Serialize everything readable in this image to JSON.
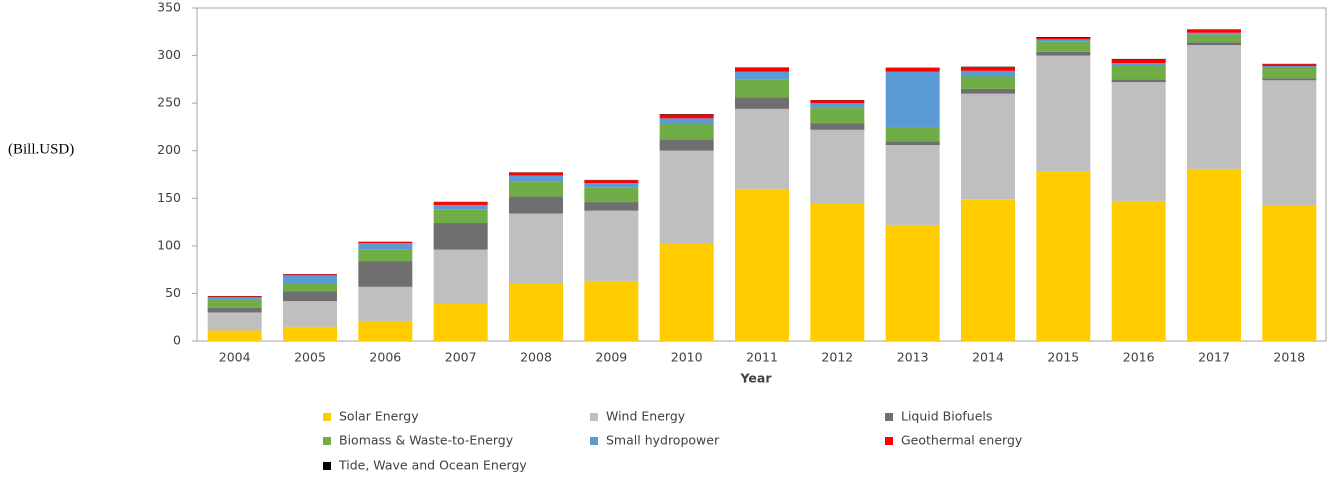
{
  "chart_data": {
    "type": "stacked_bar",
    "y_label": "(Bill.USD)",
    "x_label": "Year",
    "categories": [
      "2004",
      "2005",
      "2006",
      "2007",
      "2008",
      "2009",
      "2010",
      "2011",
      "2012",
      "2013",
      "2014",
      "2015",
      "2016",
      "2017",
      "2018"
    ],
    "ylim": [
      0,
      350
    ],
    "yticks": [
      0,
      50,
      100,
      150,
      200,
      250,
      300,
      350
    ],
    "grid": false,
    "series": [
      {
        "name": "Solar Energy",
        "color": "#ffcc00",
        "values": [
          11,
          15,
          21,
          39,
          60,
          63,
          102,
          160,
          144,
          122,
          149,
          178,
          147,
          181,
          142
        ]
      },
      {
        "name": "Wind Energy",
        "color": "#bfbfbf",
        "values": [
          19,
          27,
          36,
          57,
          74,
          74,
          98,
          84,
          78,
          84,
          111,
          122,
          125,
          130,
          132
        ]
      },
      {
        "name": "Liquid Biofuels",
        "color": "#6f6f6f",
        "values": [
          5,
          10,
          27,
          28,
          18,
          9,
          12,
          12,
          7,
          4,
          5,
          4,
          3,
          3,
          2
        ]
      },
      {
        "name": "Biomass & Waste-to-Energy",
        "color": "#70ad47",
        "values": [
          9,
          9,
          12,
          14,
          16,
          15,
          16,
          19,
          16,
          15,
          13,
          11,
          14,
          8,
          12
        ]
      },
      {
        "name": "Small hydropower",
        "color": "#5b9bd5",
        "values": [
          2,
          8,
          7,
          5,
          6,
          5,
          6,
          8,
          5,
          58,
          6,
          2,
          3,
          2,
          1
        ]
      },
      {
        "name": "Geothermal energy",
        "color": "#ff0000",
        "values": [
          1,
          1,
          1,
          3,
          3,
          3,
          4,
          4,
          3,
          4,
          4,
          2,
          4,
          3,
          2
        ]
      },
      {
        "name": "Tide, Wave and Ocean Energy",
        "color": "#000000",
        "values": [
          0.3,
          0.3,
          0.3,
          0.3,
          0.3,
          0.3,
          0.5,
          0.5,
          0.3,
          0.3,
          0.3,
          0.5,
          0.5,
          0.5,
          0.3
        ]
      }
    ],
    "legend": "bottom"
  }
}
